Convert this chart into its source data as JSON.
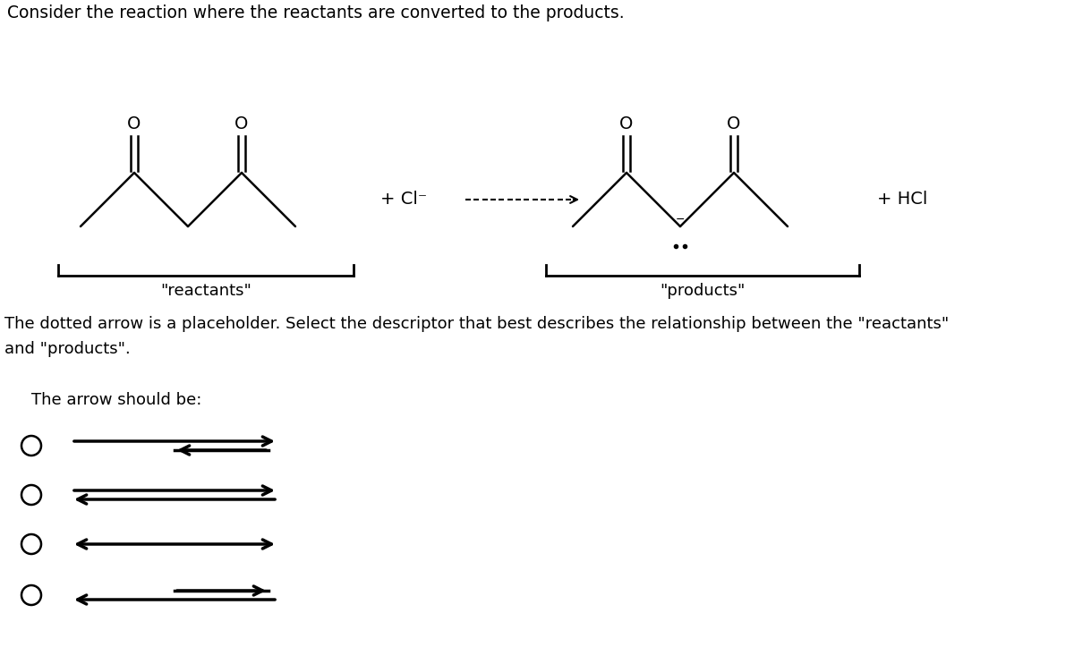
{
  "title_text": "Consider the reaction where the reactants are converted to the products.",
  "reactants_label": "\"reactants\"",
  "products_label": "\"products\"",
  "plus_cl": "+ Cl⁻",
  "plus_hcl": "+ HCl",
  "question_text1": "The dotted arrow is a placeholder. Select the descriptor that best describes the relationship between the \"reactants\"",
  "question_text2": "and \"products\".",
  "arrow_label": "The arrow should be:",
  "bg_color": "#ffffff",
  "text_color": "#000000",
  "font_size_title": 13.5,
  "font_size_label": 13,
  "font_size_question": 13,
  "font_size_O": 14,
  "lw_mol": 1.8
}
